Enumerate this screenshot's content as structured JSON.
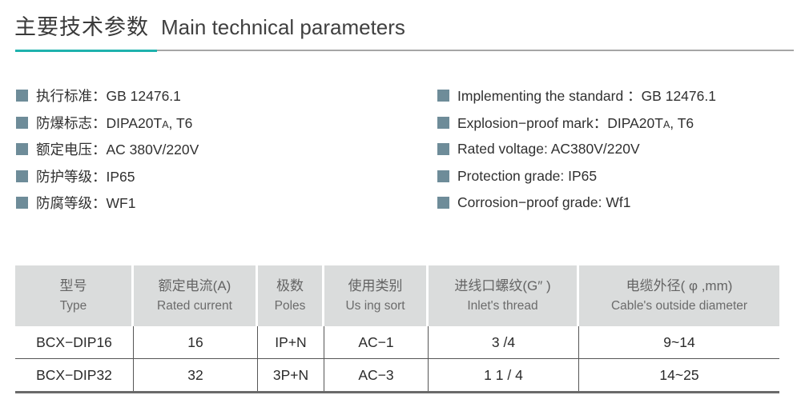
{
  "title": {
    "zh": "主要技术参数",
    "en": "Main technical parameters"
  },
  "colors": {
    "accent_teal": "#1eb2ad",
    "underline_gray": "#a6a6a6",
    "bullet_blue_gray": "#6e8c99",
    "table_header_bg": "#dadcdc",
    "table_line": "#565656"
  },
  "specs": {
    "left": [
      {
        "text": "执行标准：GB 12476.1"
      },
      {
        "pre": "防爆标志：DIPA20T",
        "small": "A",
        "post": ", T6"
      },
      {
        "text": "额定电压：AC 380V/220V"
      },
      {
        "text": "防护等级：IP65"
      },
      {
        "text": "防腐等级：WF1"
      }
    ],
    "right": [
      {
        "text": "Implementing the standard ：GB 12476.1"
      },
      {
        "pre": "Explosion−proof mark：DIPA20T",
        "small": "A",
        "post": ", T6"
      },
      {
        "text": "Rated voltage: AC380V/220V"
      },
      {
        "text": "Protection grade: IP65"
      },
      {
        "text": "Corrosion−proof grade: Wf1"
      }
    ]
  },
  "table": {
    "columns": [
      {
        "zh": "型号",
        "en": "Type"
      },
      {
        "zh": "额定电流(A)",
        "en": "Rated current"
      },
      {
        "zh": "极数",
        "en": "Poles"
      },
      {
        "zh": "使用类别",
        "en": "Us ing sort"
      },
      {
        "zh": "进线口螺纹(G″ )",
        "en": "Inlet's thread"
      },
      {
        "zh": "电缆外径( φ ,mm)",
        "en": "Cable's outside diameter"
      }
    ],
    "rows": [
      [
        "BCX−DIP16",
        "16",
        "IP+N",
        "AC−1",
        "3 /4",
        "9~14"
      ],
      [
        "BCX−DIP32",
        "32",
        "3P+N",
        "AC−3",
        "1 1 / 4",
        "14~25"
      ]
    ]
  }
}
